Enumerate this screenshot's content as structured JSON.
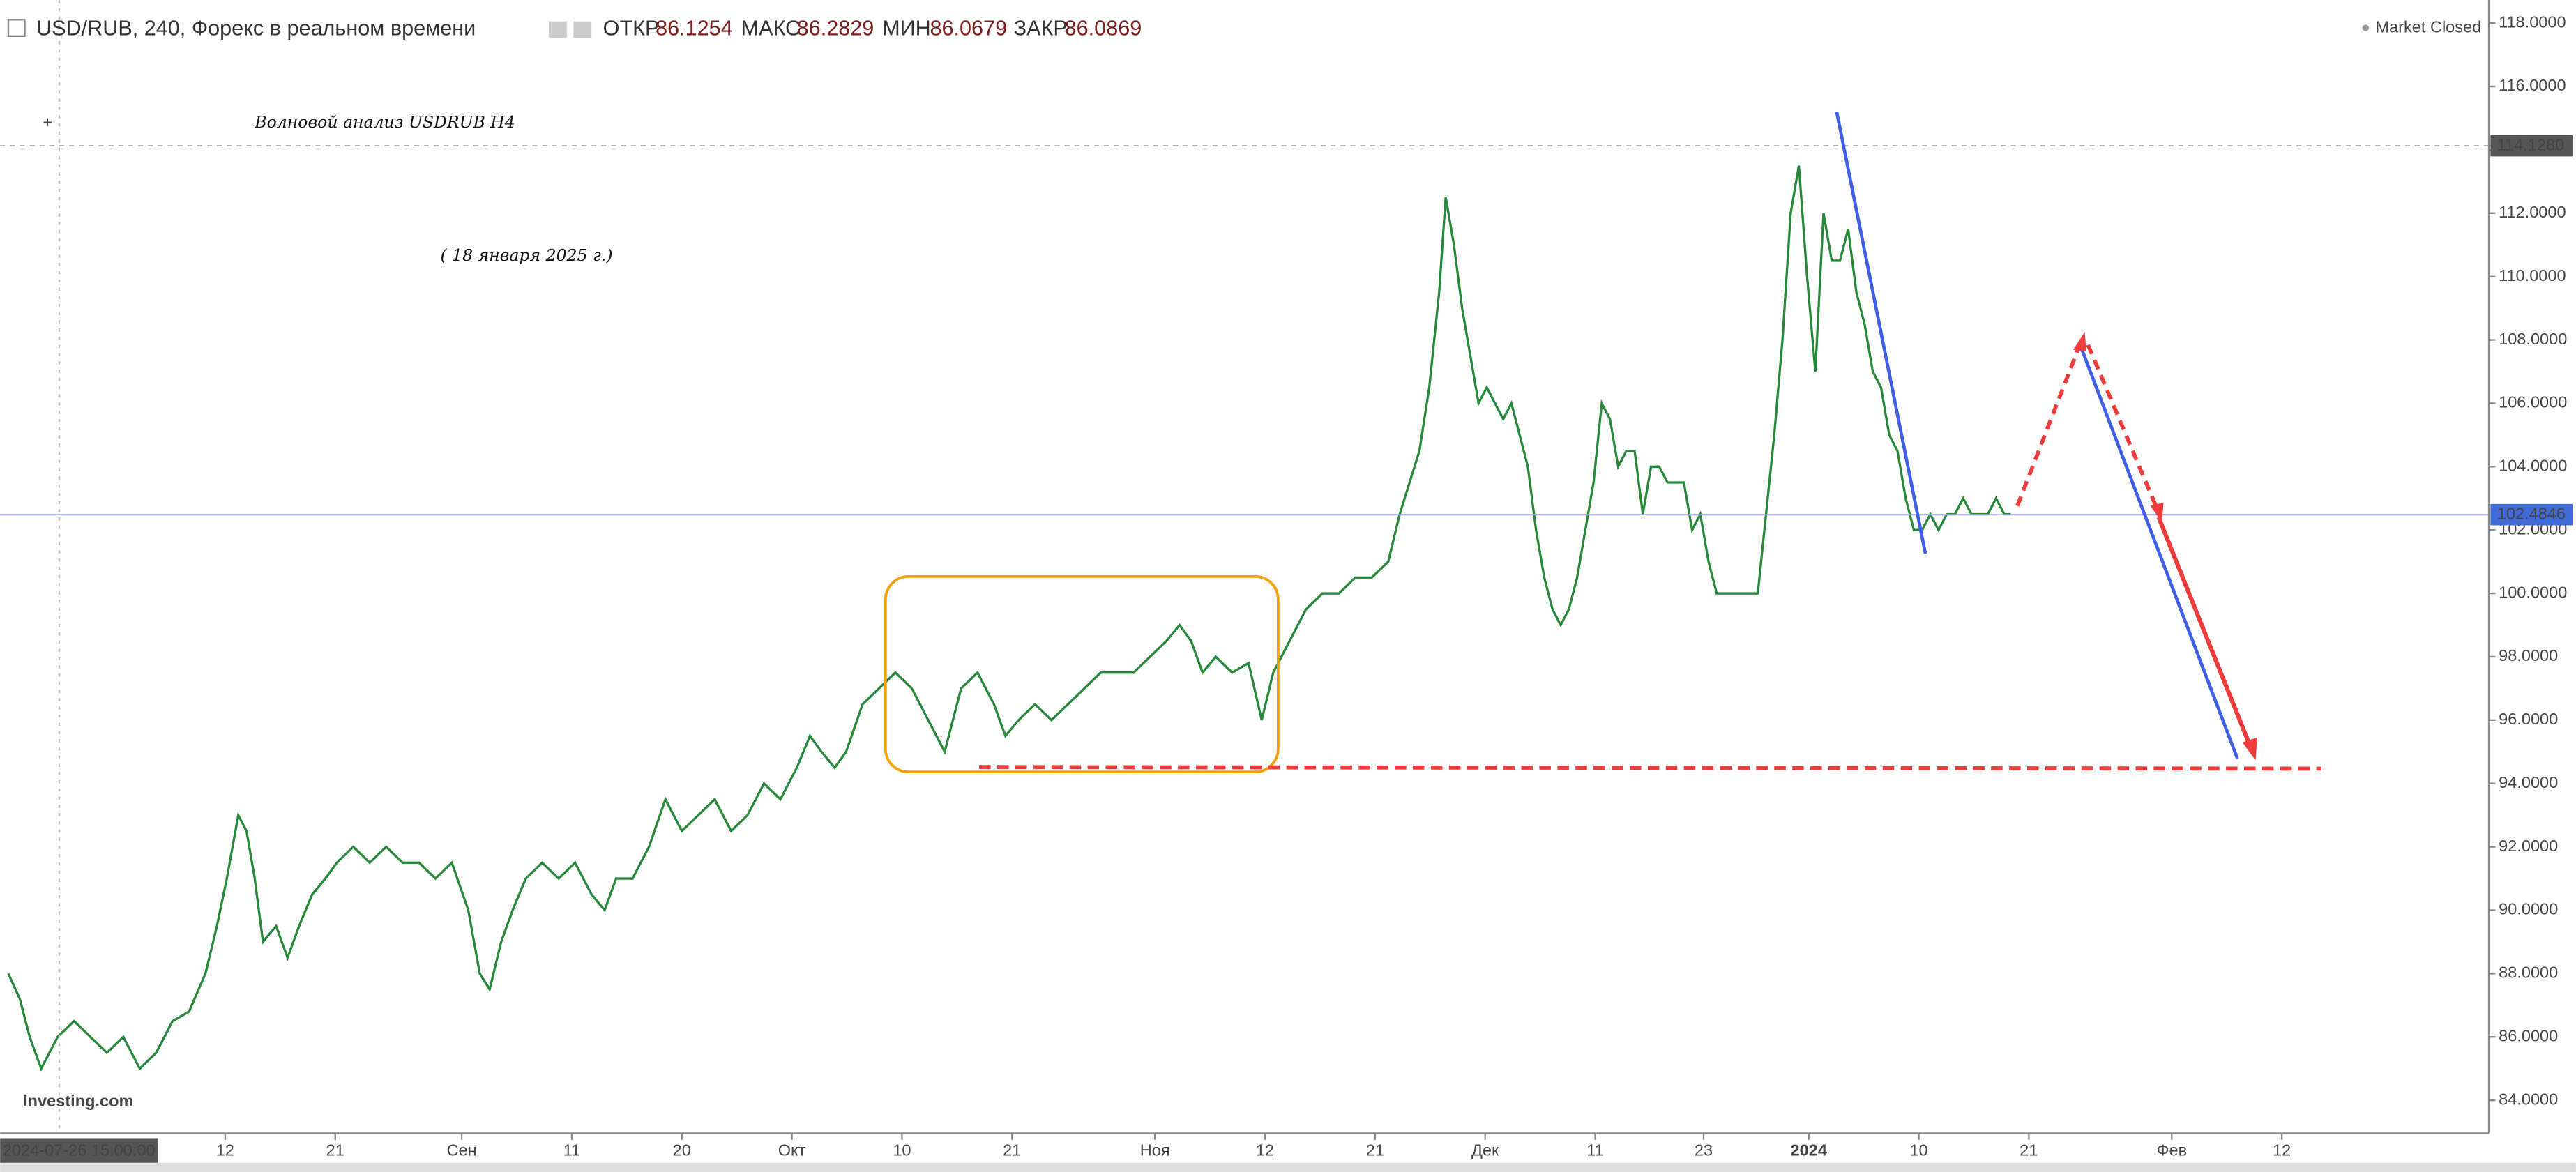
{
  "header": {
    "symbol": "USD/RUB, 240, Форекс в реальном времени",
    "open_label": "ОТКР",
    "open": "86.1254",
    "high_label": "МАКС",
    "high": "86.2829",
    "low_label": "МИН",
    "low": "86.0679",
    "close_label": "ЗАКР",
    "close": "86.0869",
    "status": "Market Closed"
  },
  "chart_data": {
    "type": "line",
    "color": "#26893a",
    "annotations": [
      "Волновой анализ USDRUB  H4",
      "( 18 января 2025 г.)"
    ],
    "watermark": "Investing.com",
    "start_label": "2024-07-26 15:00:00",
    "price_lines": [
      {
        "value": 114.128,
        "label": "114.1280"
      },
      {
        "value": 102.4846,
        "label": "102.4846"
      }
    ],
    "xlim": [
      3,
      1515
    ],
    "ylim": [
      82.96,
      118.47
    ],
    "xticks": [
      {
        "value": 137,
        "label": "12"
      },
      {
        "value": 204,
        "label": "21"
      },
      {
        "value": 281,
        "label": "Сен"
      },
      {
        "value": 348,
        "label": "11"
      },
      {
        "value": 415,
        "label": "20"
      },
      {
        "value": 482,
        "label": "Окт"
      },
      {
        "value": 549,
        "label": "10"
      },
      {
        "value": 616,
        "label": "21"
      },
      {
        "value": 703,
        "label": "Ноя"
      },
      {
        "value": 770,
        "label": "12"
      },
      {
        "value": 837,
        "label": "21"
      },
      {
        "value": 904,
        "label": "Дек"
      },
      {
        "value": 971,
        "label": "11"
      },
      {
        "value": 1037,
        "label": "23"
      },
      {
        "value": 1101,
        "label": "2024"
      },
      {
        "value": 1168,
        "label": "10"
      },
      {
        "value": 1235,
        "label": "21"
      },
      {
        "value": 1322,
        "label": "Фев"
      },
      {
        "value": 1389,
        "label": "12"
      }
    ],
    "yticks": [
      {
        "value": 84,
        "label": "84.0000"
      },
      {
        "value": 86,
        "label": "86.0000"
      },
      {
        "value": 88,
        "label": "88.0000"
      },
      {
        "value": 90,
        "label": "90.0000"
      },
      {
        "value": 92,
        "label": "92.0000"
      },
      {
        "value": 94,
        "label": "94.0000"
      },
      {
        "value": 96,
        "label": "96.0000"
      },
      {
        "value": 98,
        "label": "98.0000"
      },
      {
        "value": 100,
        "label": "100.0000"
      },
      {
        "value": 102,
        "label": "102.0000"
      },
      {
        "value": 104,
        "label": "104.0000"
      },
      {
        "value": 106,
        "label": "106.0000"
      },
      {
        "value": 108,
        "label": "108.0000"
      },
      {
        "value": 110,
        "label": "110.0000"
      },
      {
        "value": 112,
        "label": "112.0000"
      },
      {
        "value": 114,
        "label": "114.0000"
      },
      {
        "value": 116,
        "label": "116.0000"
      },
      {
        "value": 118,
        "label": "118.0000"
      }
    ],
    "x": [
      5,
      12,
      18,
      25,
      35,
      45,
      55,
      65,
      75,
      85,
      95,
      105,
      115,
      125,
      132,
      138,
      145,
      150,
      155,
      160,
      168,
      175,
      182,
      190,
      198,
      205,
      215,
      225,
      235,
      245,
      255,
      265,
      275,
      285,
      292,
      298,
      305,
      312,
      320,
      330,
      340,
      350,
      360,
      368,
      375,
      385,
      395,
      405,
      415,
      425,
      435,
      445,
      455,
      465,
      475,
      485,
      493,
      500,
      508,
      515,
      525,
      535,
      545,
      555,
      565,
      575,
      585,
      595,
      605,
      612,
      620,
      630,
      640,
      650,
      660,
      670,
      680,
      690,
      700,
      710,
      718,
      725,
      732,
      740,
      750,
      760,
      768,
      775,
      785,
      795,
      805,
      815,
      825,
      835,
      845,
      852,
      858,
      864,
      870,
      876,
      880,
      885,
      890,
      895,
      900,
      905,
      910,
      915,
      920,
      925,
      930,
      935,
      940,
      945,
      950,
      955,
      960,
      965,
      970,
      975,
      980,
      985,
      990,
      995,
      1000,
      1005,
      1010,
      1015,
      1020,
      1025,
      1030,
      1035,
      1040,
      1045,
      1050,
      1060,
      1070,
      1075,
      1080,
      1085,
      1090,
      1095,
      1100,
      1105,
      1110,
      1115,
      1120,
      1125,
      1130,
      1135,
      1140,
      1145,
      1150,
      1155,
      1160,
      1165,
      1170,
      1175,
      1180,
      1185,
      1190,
      1195,
      1200,
      1205,
      1210,
      1215,
      1220,
      1224
    ],
    "values": [
      88.0,
      87.2,
      86.0,
      85.0,
      86.0,
      86.5,
      86.0,
      85.5,
      86.0,
      85.0,
      85.5,
      86.5,
      86.8,
      88.0,
      89.5,
      91.0,
      93.0,
      92.5,
      91.0,
      89.0,
      89.5,
      88.5,
      89.5,
      90.5,
      91.0,
      91.5,
      92.0,
      91.5,
      92.0,
      91.5,
      91.5,
      91.0,
      91.5,
      90.0,
      88.0,
      87.5,
      89.0,
      90.0,
      91.0,
      91.5,
      91.0,
      91.5,
      90.5,
      90.0,
      91.0,
      91.0,
      92.0,
      93.5,
      92.5,
      93.0,
      93.5,
      92.5,
      93.0,
      94.0,
      93.5,
      94.5,
      95.5,
      95.0,
      94.5,
      95.0,
      96.5,
      97.0,
      97.5,
      97.0,
      96.0,
      95.0,
      97.0,
      97.5,
      96.5,
      95.5,
      96.0,
      96.5,
      96.0,
      96.5,
      97.0,
      97.5,
      97.5,
      97.5,
      98.0,
      98.5,
      99.0,
      98.5,
      97.5,
      98.0,
      97.5,
      97.8,
      96.0,
      97.5,
      98.5,
      99.5,
      100.0,
      100.0,
      100.5,
      100.5,
      101.0,
      102.5,
      103.5,
      104.5,
      106.5,
      109.5,
      112.5,
      111.0,
      109.0,
      107.5,
      106.0,
      106.5,
      106.0,
      105.5,
      106.0,
      105.0,
      104.0,
      102.0,
      100.5,
      99.5,
      99.0,
      99.5,
      100.5,
      102.0,
      103.5,
      106.0,
      105.5,
      104.0,
      104.5,
      104.5,
      102.5,
      104.0,
      104.0,
      103.5,
      103.5,
      103.5,
      102.0,
      102.5,
      101.0,
      100.0,
      100.0,
      100.0,
      100.0,
      102.5,
      105.0,
      108.0,
      112.0,
      113.5,
      110.0,
      107.0,
      112.0,
      110.5,
      110.5,
      111.5,
      109.5,
      108.5,
      107.0,
      106.5,
      105.0,
      104.5,
      103.0,
      102.0,
      102.0,
      102.5,
      102.0,
      102.5,
      102.5,
      103.0,
      102.5,
      102.5,
      102.5,
      103.0,
      102.5,
      102.5
    ]
  }
}
